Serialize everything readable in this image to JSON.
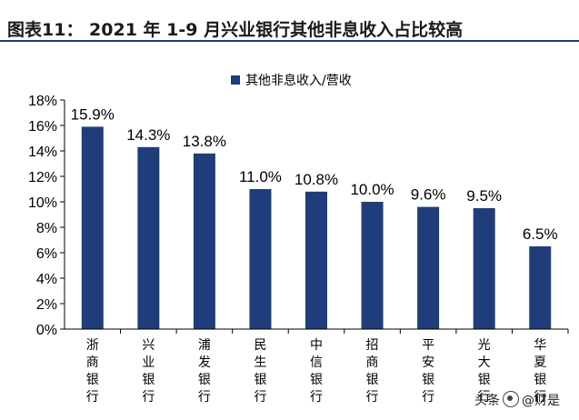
{
  "figure": {
    "title": "图表11：  2021 年 1-9 月兴业银行其他非息收入占比较高"
  },
  "colors": {
    "bar": "#1f3d7a",
    "axis": "#000000"
  },
  "chart_data": {
    "type": "bar",
    "categories": [
      "浙商银行",
      "兴业银行",
      "浦发银行",
      "民生银行",
      "中信银行",
      "招商银行",
      "平安银行",
      "光大银行",
      "华夏银行"
    ],
    "series": [
      {
        "name": "其他非息收入/营收",
        "values": [
          15.9,
          14.3,
          13.8,
          11.0,
          10.8,
          10.0,
          9.6,
          9.5,
          6.5
        ]
      }
    ],
    "data_labels": [
      "15.9%",
      "14.3%",
      "13.8%",
      "11.0%",
      "10.8%",
      "10.0%",
      "9.6%",
      "9.5%",
      "6.5%"
    ],
    "y_ticks": [
      "0%",
      "2%",
      "4%",
      "6%",
      "8%",
      "10%",
      "12%",
      "14%",
      "16%",
      "18%"
    ],
    "ylim": [
      0,
      18
    ],
    "grid": false,
    "legend_position": "top-center"
  },
  "watermark": {
    "text_left": "头条",
    "text_right": "@财是"
  }
}
